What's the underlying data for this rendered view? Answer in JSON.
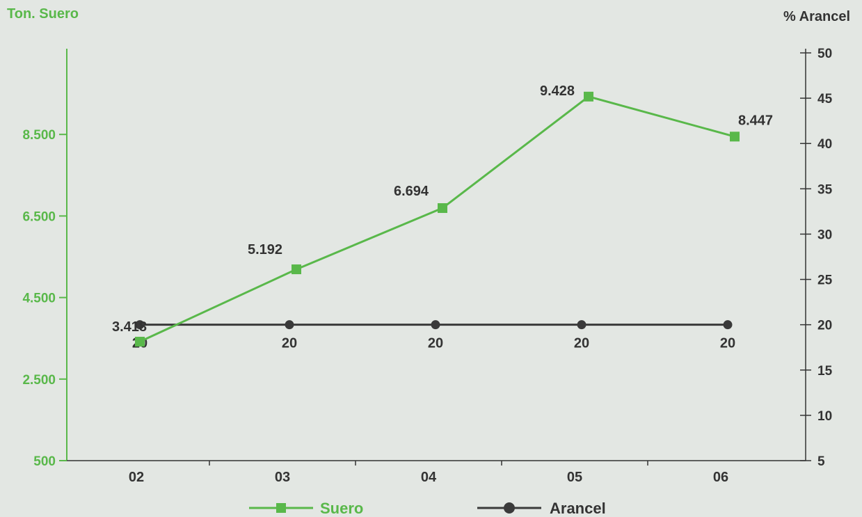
{
  "chart_data": {
    "type": "line",
    "categories": [
      "02",
      "03",
      "04",
      "05",
      "06"
    ],
    "y_left": {
      "label": "Ton. Suero",
      "range": [
        500,
        10500
      ],
      "ticks": [
        500,
        2500,
        4500,
        6500,
        8500
      ],
      "tick_labels": [
        "500",
        "2.500",
        "4.500",
        "6.500",
        "8.500"
      ]
    },
    "y_right": {
      "label": "% Arancel",
      "range": [
        5,
        50
      ],
      "ticks": [
        5,
        10,
        15,
        20,
        25,
        30,
        35,
        40,
        45,
        50
      ],
      "tick_labels": [
        "5",
        "10",
        "15",
        "20",
        "25",
        "30",
        "35",
        "40",
        "45",
        "50"
      ]
    },
    "series": [
      {
        "name": "Suero",
        "axis": "left",
        "color": "#59b84a",
        "marker": "square",
        "values": [
          3418,
          5192,
          6694,
          9428,
          8447
        ],
        "data_labels": [
          "3.418",
          "5.192",
          "6.694",
          "9.428",
          "8.447"
        ]
      },
      {
        "name": "Arancel",
        "axis": "right",
        "color": "#3a3a3a",
        "marker": "circle",
        "values": [
          20,
          20,
          20,
          20,
          20
        ],
        "data_labels": [
          "20",
          "20",
          "20",
          "20",
          "20"
        ]
      }
    ],
    "legend": "bottom-center",
    "grid": false
  }
}
